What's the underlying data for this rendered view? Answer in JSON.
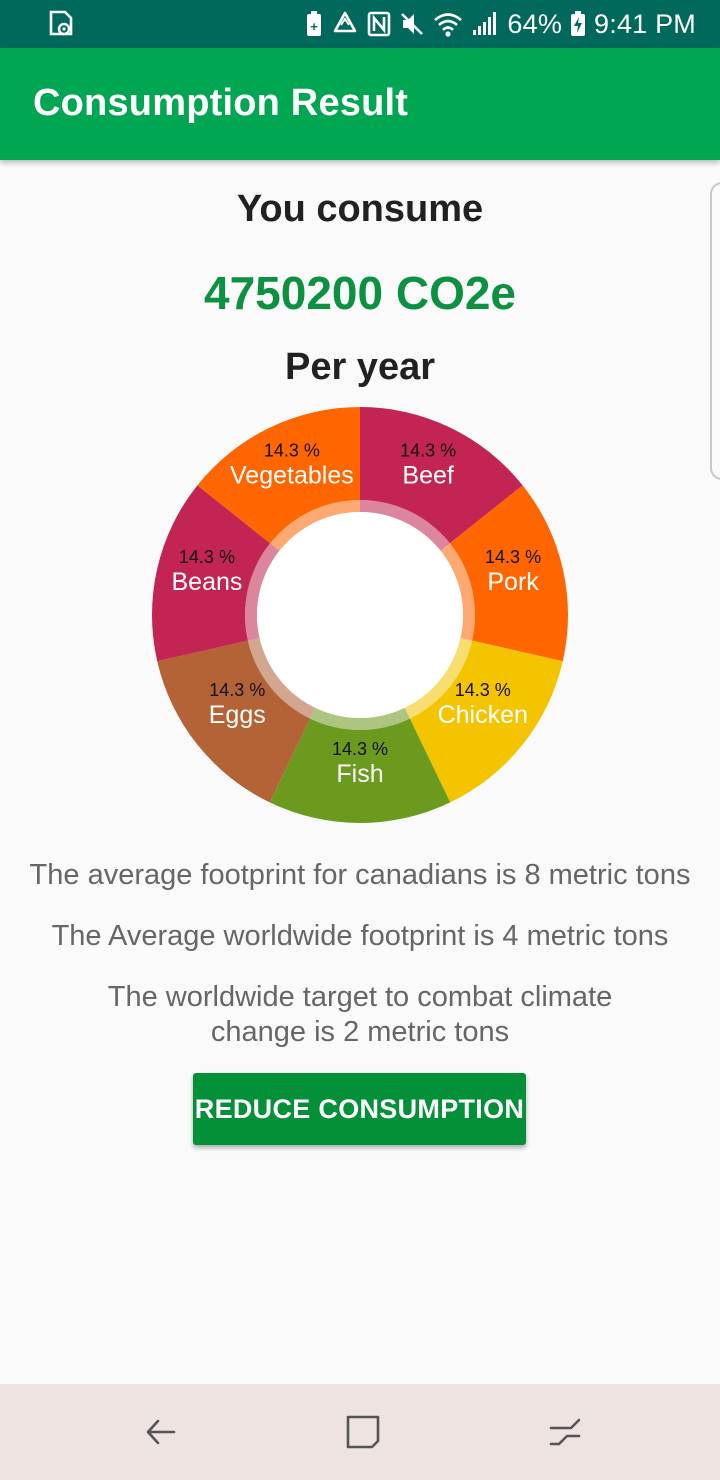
{
  "status_bar": {
    "battery_percent": "64%",
    "time": "9:41 PM",
    "icons": [
      "sim-card-icon",
      "recycle-icon",
      "nfc-icon",
      "mute-icon",
      "wifi-icon",
      "signal-icon",
      "battery-charging-icon"
    ]
  },
  "app_bar": {
    "title": "Consumption Result"
  },
  "summary": {
    "label": "You consume",
    "amount": "4750200 CO2e",
    "period": "Per year"
  },
  "chart_data": {
    "type": "pie",
    "hole": true,
    "categories": [
      "Beef",
      "Pork",
      "Chicken",
      "Fish",
      "Eggs",
      "Beans",
      "Vegetables"
    ],
    "values": [
      14.3,
      14.3,
      14.3,
      14.3,
      14.3,
      14.3,
      14.3
    ],
    "value_labels": [
      "14.3 %",
      "14.3 %",
      "14.3 %",
      "14.3 %",
      "14.3 %",
      "14.3 %",
      "14.3 %"
    ],
    "colors": [
      "#c22453",
      "#ff6600",
      "#f5c400",
      "#6b9a1f",
      "#b36336",
      "#c22453",
      "#ff6600"
    ]
  },
  "info": {
    "canada_average": "The average footprint for canadians is 8 metric tons",
    "worldwide_average": "The Average worldwide footprint is 4 metric tons",
    "worldwide_target": "The worldwide target to combat climate change is 2 metric tons"
  },
  "actions": {
    "reduce_label": "REDUCE CONSUMPTION"
  },
  "nav_bar": {
    "icons": [
      "back-arrow-icon",
      "home-square-icon",
      "recent-apps-icon"
    ]
  },
  "colors": {
    "status_bar": "#00695c",
    "app_bar": "#00a651",
    "accent_text": "#0c9141",
    "button": "#049039",
    "nav_bar": "#ede3e1"
  }
}
